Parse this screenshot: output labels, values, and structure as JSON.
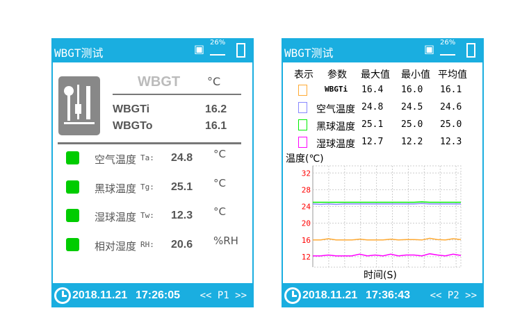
{
  "colors": {
    "header": "#1aaee0",
    "status_ok": "#00cc00",
    "wbgti": "#ffaa33",
    "air": "#8888ff",
    "globe": "#00ee00",
    "wet": "#ff00ff",
    "tick": "#ff0000"
  },
  "panel1": {
    "title": "WBGT测试",
    "battery_percent": "26%",
    "wbgt_label": "WBGT",
    "wbgt_unit": "°C",
    "wbgt_rows": [
      {
        "label": "WBGTi",
        "value": "16.2"
      },
      {
        "label": "WBGTo",
        "value": "16.1"
      }
    ],
    "readings": [
      {
        "label": "空气温度",
        "code": "Ta:",
        "value": "24.8",
        "unit": "°C"
      },
      {
        "label": "黑球温度",
        "code": "Tg:",
        "value": "25.1",
        "unit": "°C"
      },
      {
        "label": "湿球温度",
        "code": "Tw:",
        "value": "12.3",
        "unit": "°C"
      },
      {
        "label": "相对湿度",
        "code": "RH:",
        "value": "20.6",
        "unit": "%RH"
      }
    ],
    "footer": {
      "date": "2018.11.21",
      "time": "17:26:05",
      "page": "<< P1 >>"
    }
  },
  "panel2": {
    "title": "WBGT测试",
    "battery_percent": "26%",
    "headers": [
      "表示",
      "参数",
      "最大值",
      "最小值",
      "平均值"
    ],
    "rows": [
      {
        "param": "WBGTi",
        "max": "16.4",
        "min": "16.0",
        "avg": "16.1",
        "color": "#ffaa33"
      },
      {
        "param": "空气温度",
        "max": "24.8",
        "min": "24.5",
        "avg": "24.6",
        "color": "#8888ff"
      },
      {
        "param": "黑球温度",
        "max": "25.1",
        "min": "25.0",
        "avg": "25.0",
        "color": "#00ee00"
      },
      {
        "param": "湿球温度",
        "max": "12.7",
        "min": "12.2",
        "avg": "12.3",
        "color": "#ff00ff"
      }
    ],
    "footer": {
      "date": "2018.11.21",
      "time": "17:36:43",
      "page": "<< P2 >>"
    }
  },
  "chart_data": {
    "type": "line",
    "ylabel": "温度(℃)",
    "xlabel": "时间(S)",
    "ylim": [
      9.5,
      33.7
    ],
    "yticks": [
      "32",
      "28",
      "24",
      "20",
      "16",
      "12"
    ],
    "grid": true,
    "series": [
      {
        "color": "#00ee00",
        "values": [
          25.0,
          25.0,
          25.0,
          25.0,
          25.0,
          25.0,
          25.0,
          25.0,
          25.0,
          25.0,
          25.0,
          25.0,
          25.0,
          25.0,
          25.1,
          25.0,
          25.0,
          25.0,
          25.0,
          25.0
        ]
      },
      {
        "color": "#8888ff",
        "values": [
          24.6,
          24.5,
          24.6,
          24.5,
          24.6,
          24.6,
          24.6,
          24.6,
          24.6,
          24.6,
          24.6,
          24.6,
          24.6,
          24.6,
          24.7,
          24.6,
          24.6,
          24.6,
          24.6,
          24.6
        ]
      },
      {
        "color": "#ffaa33",
        "values": [
          16.0,
          16.0,
          16.3,
          16.0,
          16.0,
          16.0,
          16.2,
          16.0,
          16.0,
          16.0,
          16.2,
          16.0,
          16.1,
          16.1,
          16.0,
          16.4,
          16.1,
          16.0,
          16.3,
          16.1
        ]
      },
      {
        "color": "#ff00ff",
        "values": [
          12.2,
          12.2,
          12.4,
          12.2,
          12.2,
          12.2,
          12.6,
          12.2,
          12.4,
          12.2,
          12.6,
          12.2,
          12.4,
          12.4,
          12.2,
          12.7,
          12.4,
          12.2,
          12.6,
          12.3
        ]
      }
    ]
  }
}
